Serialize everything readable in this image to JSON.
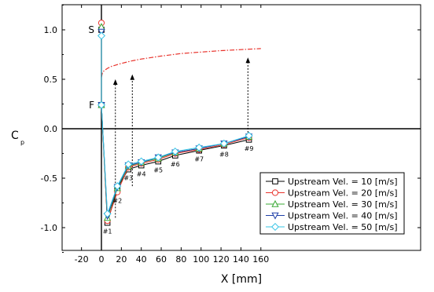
{
  "chart_data": {
    "type": "line",
    "xlabel": "X [mm]",
    "ylabel": "C",
    "ylabel_sub": "p",
    "xlim": [
      -20,
      160
    ],
    "ylim": [
      -1.25,
      1.25
    ],
    "xticks": [
      -20,
      0,
      20,
      40,
      60,
      80,
      100,
      120,
      140,
      160
    ],
    "yticks": [
      -1.0,
      -0.5,
      0.0,
      0.5,
      1.0
    ],
    "xtick_labels": [
      "-20",
      "0",
      "20",
      "40",
      "60",
      "80",
      "100",
      "120",
      "140",
      "160"
    ],
    "ytick_labels": [
      "-1.0",
      "-0.5",
      "0.0",
      "0.5",
      "1.0"
    ],
    "grid": false,
    "legend_position": "lower-right",
    "x": [
      0,
      0,
      6,
      16,
      27,
      40,
      57,
      74,
      98,
      123,
      148
    ],
    "point_labels": [
      "S",
      "F",
      "#1",
      "#2",
      "#3",
      "#4",
      "#5",
      "#6",
      "#7",
      "#8",
      "#9"
    ],
    "series": [
      {
        "name": "Upstream Vel. = 10 [m/s]",
        "marker": "square",
        "color": "#000000",
        "values": [
          1.0,
          0.24,
          -0.95,
          -0.6,
          -0.41,
          -0.37,
          -0.33,
          -0.27,
          -0.22,
          -0.17,
          -0.11
        ]
      },
      {
        "name": "Upstream Vel. = 20 [m/s]",
        "marker": "circle",
        "color": "#e8322b",
        "values": [
          1.07,
          0.24,
          -0.93,
          -0.64,
          -0.39,
          -0.35,
          -0.31,
          -0.25,
          -0.21,
          -0.16,
          -0.09
        ]
      },
      {
        "name": "Upstream Vel. = 30 [m/s]",
        "marker": "triangle-up",
        "color": "#3aa935",
        "values": [
          1.03,
          0.24,
          -0.9,
          -0.6,
          -0.38,
          -0.34,
          -0.3,
          -0.24,
          -0.2,
          -0.15,
          -0.08
        ]
      },
      {
        "name": "Upstream Vel. = 40 [m/s]",
        "marker": "triangle-down",
        "color": "#1f3fa8",
        "values": [
          0.98,
          0.24,
          -0.88,
          -0.59,
          -0.37,
          -0.34,
          -0.29,
          -0.24,
          -0.2,
          -0.15,
          -0.08
        ]
      },
      {
        "name": "Upstream Vel. = 50 [m/s]",
        "marker": "diamond",
        "color": "#36c4e6",
        "values": [
          0.94,
          0.24,
          -0.86,
          -0.58,
          -0.36,
          -0.33,
          -0.29,
          -0.23,
          -0.19,
          -0.15,
          -0.07
        ]
      }
    ],
    "profile_curve": {
      "color": "#e8322b",
      "x": [
        0,
        1,
        3,
        6,
        10,
        15,
        20,
        30,
        40,
        50,
        60,
        80,
        100,
        120,
        140,
        160
      ],
      "y": [
        0.52,
        0.57,
        0.59,
        0.61,
        0.63,
        0.645,
        0.66,
        0.685,
        0.705,
        0.72,
        0.735,
        0.76,
        0.775,
        0.79,
        0.8,
        0.81
      ]
    },
    "arrows": [
      {
        "x": 14,
        "from": -0.9,
        "to": 0.5
      },
      {
        "x": 31,
        "from": -0.58,
        "to": 0.55
      },
      {
        "x": 147,
        "from": -0.07,
        "to": 0.72
      }
    ]
  }
}
